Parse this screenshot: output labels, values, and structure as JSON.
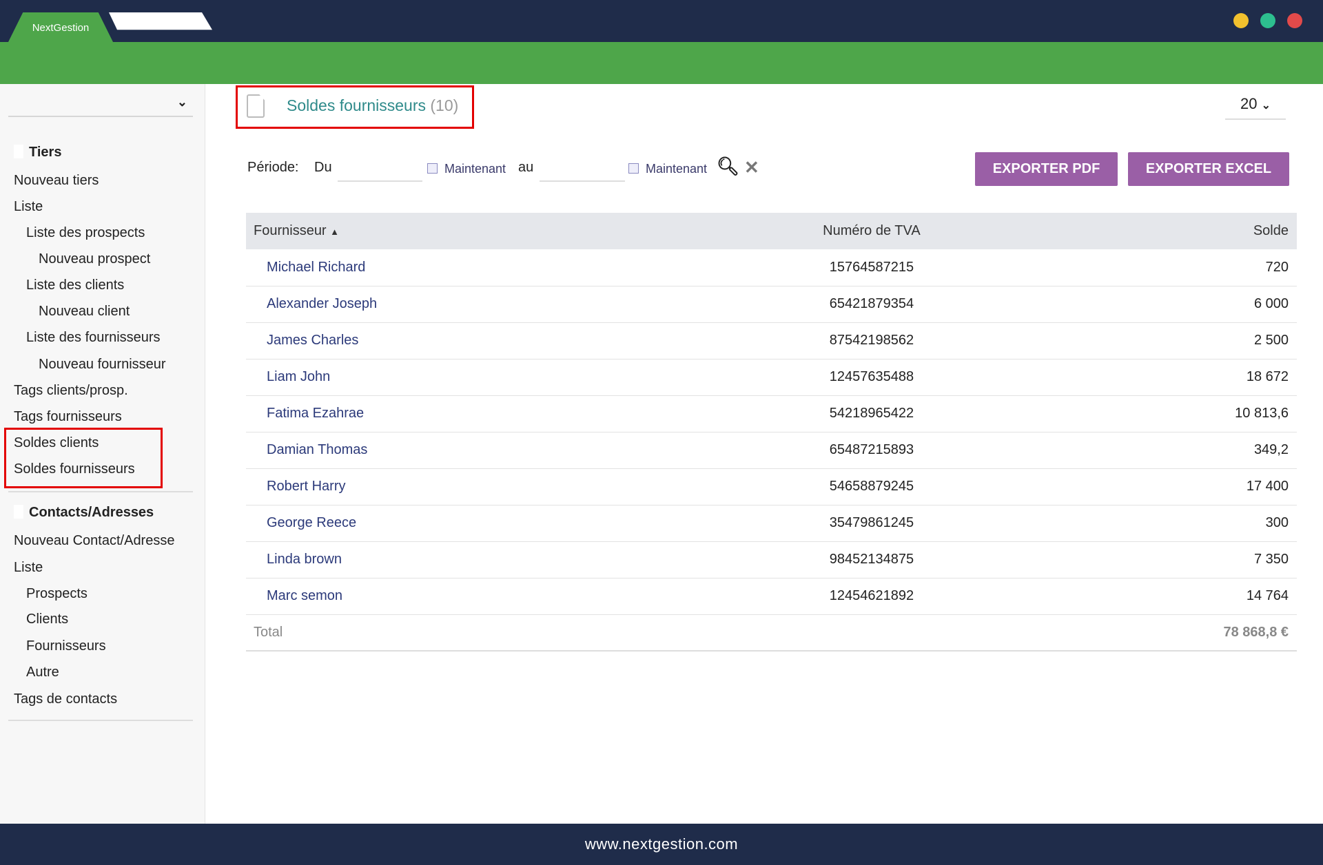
{
  "app": {
    "tab_label": "NextGestion",
    "window_dots": [
      "#f2c12e",
      "#2dbf8f",
      "#e24a4a"
    ],
    "brand_green": "#4ea64a",
    "nav_dark": "#1f2c4a",
    "accent_purple": "#9a5fa6"
  },
  "sidebar": {
    "sections": [
      {
        "title": "Tiers",
        "icon": "building-icon",
        "items": [
          {
            "label": "Nouveau tiers",
            "level": 0
          },
          {
            "label": "Liste",
            "level": 0
          },
          {
            "label": "Liste des prospects",
            "level": 1
          },
          {
            "label": "Nouveau prospect",
            "level": 2
          },
          {
            "label": "Liste des clients",
            "level": 1
          },
          {
            "label": "Nouveau client",
            "level": 2
          },
          {
            "label": "Liste des fournisseurs",
            "level": 1
          },
          {
            "label": "Nouveau fournisseur",
            "level": 2
          },
          {
            "label": "Tags clients/prosp.",
            "level": 0
          },
          {
            "label": "Tags fournisseurs",
            "level": 0
          },
          {
            "label": "Soldes clients",
            "level": 0
          },
          {
            "label": "Soldes fournisseurs",
            "level": 0
          }
        ]
      },
      {
        "title": "Contacts/Adresses",
        "icon": "contact-card-icon",
        "items": [
          {
            "label": "Nouveau Contact/Adresse",
            "level": 0
          },
          {
            "label": "Liste",
            "level": 0
          },
          {
            "label": "Prospects",
            "level": 1
          },
          {
            "label": "Clients",
            "level": 1
          },
          {
            "label": "Fournisseurs",
            "level": 1
          },
          {
            "label": "Autre",
            "level": 1
          },
          {
            "label": "Tags de contacts",
            "level": 0
          }
        ]
      }
    ]
  },
  "main": {
    "title": "Soldes fournisseurs",
    "count": "(10)",
    "per_page": "20",
    "filter": {
      "periode_label": "Période:",
      "du_label": "Du",
      "au_label": "au",
      "now_label": "Maintenant",
      "du_value": "",
      "au_value": ""
    },
    "buttons": {
      "pdf": "EXPORTER PDF",
      "excel": "EXPORTER EXCEL"
    },
    "table": {
      "headers": [
        "Fournisseur",
        "Numéro de TVA",
        "Solde"
      ],
      "sort": "Fournisseur ascending",
      "rows": [
        [
          "Michael Richard",
          "15764587215",
          "720"
        ],
        [
          "Alexander Joseph",
          "65421879354",
          "6 000"
        ],
        [
          "James Charles",
          "87542198562",
          "2 500"
        ],
        [
          "Liam John",
          "12457635488",
          "18 672"
        ],
        [
          "Fatima Ezahrae",
          "54218965422",
          "10 813,6"
        ],
        [
          "Damian Thomas",
          "65487215893",
          "349,2"
        ],
        [
          "Robert Harry",
          "54658879245",
          "17 400"
        ],
        [
          "George Reece",
          "35479861245",
          "300"
        ],
        [
          "Linda brown",
          "98452134875",
          "7 350"
        ],
        [
          "Marc semon",
          "12454621892",
          "14 764"
        ]
      ],
      "total_label": "Total",
      "total_value": "78 868,8 €"
    }
  },
  "footer": {
    "url": "www.nextgestion.com"
  }
}
